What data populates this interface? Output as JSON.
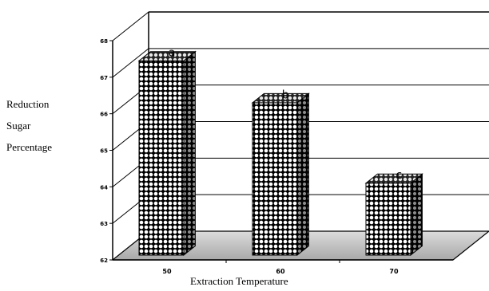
{
  "chart_data": {
    "type": "bar",
    "style": "3d",
    "categories": [
      "50",
      "60",
      "70"
    ],
    "values": [
      67.45,
      66.3,
      64.1
    ],
    "bar_labels": [
      "a",
      "b",
      "c"
    ],
    "ylabel": [
      "Reduction",
      "Sugar",
      "Percentage"
    ],
    "xlabel": "Extraction Temperature",
    "ylim": [
      62,
      68
    ],
    "yticks": [
      "62",
      "63",
      "64",
      "65",
      "66",
      "67",
      "68"
    ],
    "grid": true,
    "legend": "none",
    "colors": {
      "bar_front_base": "#ffffff",
      "bar_dots": "#000000",
      "floor": "#c8c8c8",
      "axis": "#000000"
    }
  }
}
